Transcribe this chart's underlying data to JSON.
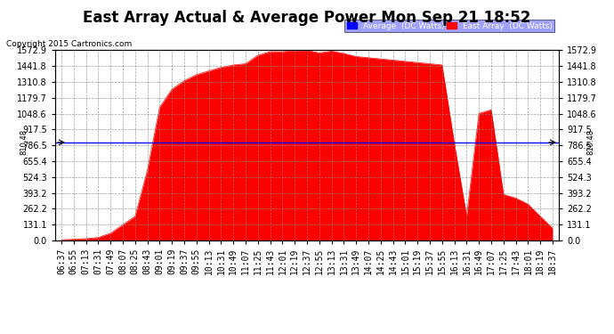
{
  "title": "East Array Actual & Average Power Mon Sep 21 18:52",
  "copyright": "Copyright 2015 Cartronics.com",
  "ymax": 1572.9,
  "ymin": 0.0,
  "yticks": [
    0.0,
    131.1,
    262.2,
    393.2,
    524.3,
    655.4,
    786.5,
    917.5,
    1048.6,
    1179.7,
    1310.8,
    1441.8,
    1572.9
  ],
  "average_line_value": 810.48,
  "fill_color": "#FF0000",
  "average_line_color": "#0000FF",
  "legend_avg_bg": "#0000FF",
  "legend_east_bg": "#FF0000",
  "background_color": "#FFFFFF",
  "grid_color": "#AAAAAA",
  "title_fontsize": 12,
  "tick_fontsize": 7,
  "east_power": [
    5,
    10,
    15,
    25,
    60,
    130,
    200,
    580,
    1100,
    1250,
    1320,
    1370,
    1400,
    1430,
    1450,
    1460,
    1530,
    1560,
    1560,
    1568,
    1570,
    1550,
    1565,
    1545,
    1520,
    1510,
    1500,
    1490,
    1480,
    1470,
    1460,
    1450,
    800,
    200,
    1050,
    1080,
    380,
    350,
    300,
    200,
    100
  ],
  "x_tick_labels": [
    "06:37",
    "06:55",
    "07:13",
    "07:31",
    "07:49",
    "08:07",
    "08:25",
    "08:43",
    "09:01",
    "09:19",
    "09:37",
    "09:55",
    "10:13",
    "10:31",
    "10:49",
    "11:07",
    "11:25",
    "11:43",
    "12:01",
    "12:19",
    "12:37",
    "12:55",
    "13:13",
    "13:31",
    "13:49",
    "14:07",
    "14:25",
    "14:43",
    "15:01",
    "15:19",
    "15:37",
    "15:55",
    "16:13",
    "16:31",
    "16:49",
    "17:07",
    "17:25",
    "17:43",
    "18:01",
    "18:19",
    "18:37"
  ]
}
